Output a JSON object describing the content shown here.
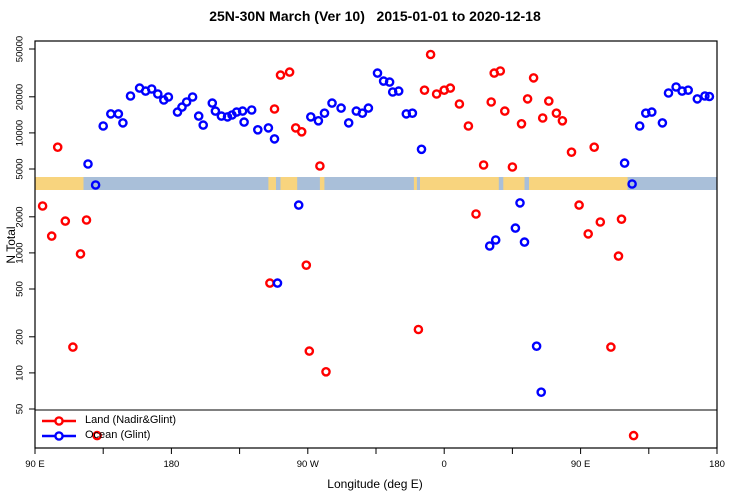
{
  "chart_data": {
    "type": "scatter",
    "title": "25N-30N March (Ver 10)   2015-01-01 to 2020-12-18",
    "xlabel": "Longitude (deg E)",
    "ylabel": "N Total",
    "x_axis": {
      "unit": "deg E along wrapped axis, 90E to 180 twice around",
      "range_deg": [
        90,
        540
      ],
      "major_ticks": [
        {
          "deg": 90,
          "label": "90 E"
        },
        {
          "deg": 180,
          "label": "180"
        },
        {
          "deg": 270,
          "label": "90 W"
        },
        {
          "deg": 360,
          "label": "0"
        },
        {
          "deg": 450,
          "label": "90 E"
        },
        {
          "deg": 540,
          "label": "180"
        }
      ],
      "minor_ticks_deg": [
        135,
        225,
        315,
        405,
        495
      ]
    },
    "y_axis": {
      "scale": "log",
      "range": [
        14,
        56000
      ],
      "ticks": [
        50,
        100,
        200,
        500,
        1000,
        2000,
        5000,
        10000,
        20000,
        50000
      ]
    },
    "threshold_line_y": 48,
    "map_band": {
      "description": "land/ocean strip for the 25N-30N latitude belt",
      "value_range": [
        3400,
        4600
      ],
      "ocean_color": "#a9bfd9",
      "land_color": "#f8d47e",
      "land_segments_deg": [
        [
          90,
          122
        ],
        [
          244,
          263
        ],
        [
          278,
          281
        ],
        [
          340,
          342
        ],
        [
          344,
          481
        ]
      ],
      "water_overlays_deg": [
        [
          249,
          252
        ],
        [
          396,
          399
        ],
        [
          413,
          416
        ]
      ]
    },
    "legend_position": "bottom-left",
    "series": [
      {
        "name": "Land (Nadir&Glint)",
        "color": "#ff0000",
        "points": [
          [
            105,
            7600
          ],
          [
            95,
            2460
          ],
          [
            110,
            1840
          ],
          [
            124,
            1880
          ],
          [
            101,
            1380
          ],
          [
            120,
            980
          ],
          [
            115,
            164
          ],
          [
            131,
            30
          ],
          [
            252,
            30300
          ],
          [
            258,
            32100
          ],
          [
            248,
            15800
          ],
          [
            262,
            11000
          ],
          [
            266,
            10200
          ],
          [
            278,
            5300
          ],
          [
            351,
            45000
          ],
          [
            347,
            22700
          ],
          [
            355,
            21100
          ],
          [
            360,
            22700
          ],
          [
            364,
            23600
          ],
          [
            370,
            17400
          ],
          [
            376,
            11400
          ],
          [
            386,
            5400
          ],
          [
            393,
            31500
          ],
          [
            397,
            32800
          ],
          [
            391,
            18100
          ],
          [
            400,
            15200
          ],
          [
            405,
            5200
          ],
          [
            411,
            11900
          ],
          [
            415,
            19200
          ],
          [
            419,
            28700
          ],
          [
            425,
            13300
          ],
          [
            429,
            18400
          ],
          [
            434,
            14600
          ],
          [
            438,
            12600
          ],
          [
            444,
            6900
          ],
          [
            459,
            7600
          ],
          [
            449,
            2500
          ],
          [
            455,
            1440
          ],
          [
            463,
            1810
          ],
          [
            477,
            1910
          ],
          [
            475,
            940
          ],
          [
            485,
            30
          ],
          [
            470,
            164
          ],
          [
            381,
            2110
          ],
          [
            269,
            790
          ],
          [
            245,
            560
          ],
          [
            343,
            230
          ],
          [
            271,
            152
          ],
          [
            282,
            102
          ]
        ]
      },
      {
        "name": "Ocean (Glint)",
        "color": "#0000ff",
        "points": [
          [
            125,
            5500
          ],
          [
            130,
            3680
          ],
          [
            135,
            11400
          ],
          [
            140,
            14400
          ],
          [
            145,
            14400
          ],
          [
            148,
            12100
          ],
          [
            153,
            20300
          ],
          [
            159,
            23600
          ],
          [
            163,
            22300
          ],
          [
            167,
            23200
          ],
          [
            171,
            21100
          ],
          [
            175,
            18800
          ],
          [
            178,
            19900
          ],
          [
            184,
            14900
          ],
          [
            187,
            16400
          ],
          [
            190,
            18100
          ],
          [
            194,
            19900
          ],
          [
            198,
            13800
          ],
          [
            201,
            11600
          ],
          [
            207,
            17700
          ],
          [
            209,
            15200
          ],
          [
            213,
            13800
          ],
          [
            217,
            13600
          ],
          [
            220,
            14100
          ],
          [
            223,
            14900
          ],
          [
            227,
            15200
          ],
          [
            228,
            12300
          ],
          [
            233,
            15500
          ],
          [
            237,
            10600
          ],
          [
            244,
            11000
          ],
          [
            248,
            8900
          ],
          [
            272,
            13600
          ],
          [
            277,
            12600
          ],
          [
            281,
            14600
          ],
          [
            286,
            17700
          ],
          [
            292,
            16100
          ],
          [
            297,
            12100
          ],
          [
            302,
            15200
          ],
          [
            306,
            14600
          ],
          [
            310,
            16100
          ],
          [
            316,
            31500
          ],
          [
            320,
            27000
          ],
          [
            324,
            26500
          ],
          [
            326,
            21900
          ],
          [
            330,
            22300
          ],
          [
            335,
            14400
          ],
          [
            339,
            14600
          ],
          [
            345,
            7300
          ],
          [
            264,
            2500
          ],
          [
            250,
            560
          ],
          [
            390,
            1140
          ],
          [
            394,
            1280
          ],
          [
            407,
            1610
          ],
          [
            413,
            1230
          ],
          [
            410,
            2610
          ],
          [
            421,
            167
          ],
          [
            424,
            69
          ],
          [
            484,
            3750
          ],
          [
            479,
            5600
          ],
          [
            489,
            11400
          ],
          [
            493,
            14600
          ],
          [
            497,
            14900
          ],
          [
            504,
            12100
          ],
          [
            508,
            21500
          ],
          [
            513,
            24100
          ],
          [
            517,
            22300
          ],
          [
            521,
            22700
          ],
          [
            527,
            19200
          ],
          [
            532,
            20300
          ],
          [
            535,
            20100
          ]
        ]
      }
    ]
  }
}
